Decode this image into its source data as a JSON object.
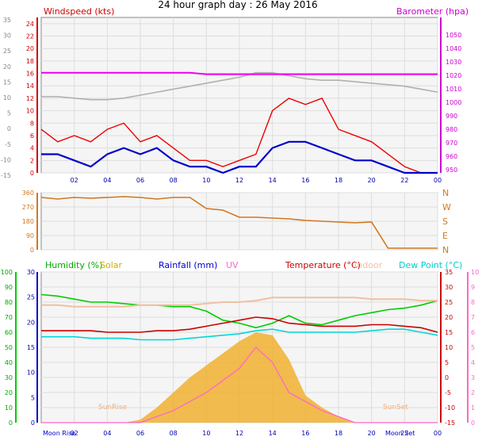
{
  "title": "24 hour graph day : 26 May 2016",
  "chart_data": [
    {
      "type": "line",
      "legend": {
        "windspeed": "Windspeed (kts)",
        "barometer": "Barometer (hpa)"
      },
      "x_ticks": [
        "02",
        "04",
        "06",
        "08",
        "10",
        "12",
        "14",
        "16",
        "18",
        "20",
        "22",
        "00"
      ],
      "left_outer_ticks": [
        "35",
        "30",
        "25",
        "20",
        "15",
        "10",
        "5",
        "0",
        "-5",
        "-10",
        "-15"
      ],
      "left_inner_ticks": [
        "24",
        "22",
        "20",
        "18",
        "16",
        "14",
        "12",
        "10",
        "8",
        "6",
        "4",
        "2",
        "0"
      ],
      "right_ticks": [
        "1050",
        "1040",
        "1030",
        "1020",
        "1010",
        "1000",
        "990",
        "980",
        "970",
        "960",
        "950"
      ],
      "ylim_wind": [
        0,
        25
      ],
      "ylim_baro": [
        948,
        1052
      ],
      "colors": {
        "gust": "#ee0000",
        "avg": "#0000cc",
        "baro": "#ee00ee",
        "gray": "#b0b0b0",
        "wind_text": "#cc0000",
        "baro_text": "#cc00cc"
      },
      "x": [
        0,
        1,
        2,
        3,
        4,
        5,
        6,
        7,
        8,
        9,
        10,
        11,
        12,
        13,
        14,
        15,
        16,
        17,
        18,
        19,
        20,
        21,
        22,
        23,
        24
      ],
      "series": [
        {
          "key": "gust",
          "values": [
            7,
            5,
            6,
            5,
            7,
            8,
            5,
            6,
            4,
            2,
            2,
            1,
            2,
            3,
            10,
            12,
            11,
            12,
            7,
            6,
            5,
            3,
            1,
            0,
            0
          ]
        },
        {
          "key": "avg",
          "values": [
            3,
            3,
            2,
            1,
            3,
            4,
            3,
            4,
            2,
            1,
            1,
            0,
            1,
            1,
            4,
            5,
            5,
            4,
            3,
            2,
            2,
            1,
            0,
            0,
            0
          ]
        },
        {
          "key": "baro",
          "values": [
            1015,
            1015,
            1015,
            1015,
            1015,
            1015,
            1015,
            1015,
            1015,
            1015,
            1014,
            1014,
            1014,
            1014,
            1014,
            1014,
            1014,
            1014,
            1014,
            1014,
            1014,
            1014,
            1014,
            1014,
            1014
          ]
        },
        {
          "key": "gray",
          "values": [
            999,
            999,
            998,
            997,
            997,
            998,
            1000,
            1002,
            1004,
            1006,
            1008,
            1010,
            1012,
            1015,
            1015,
            1013,
            1011,
            1010,
            1010,
            1009,
            1008,
            1007,
            1006,
            1004,
            1002
          ]
        }
      ]
    },
    {
      "type": "line",
      "left_ticks": [
        "360",
        "270",
        "180",
        "90",
        "0"
      ],
      "right_ticks": [
        "N",
        "W",
        "S",
        "E",
        "N"
      ],
      "ylim": [
        0,
        360
      ],
      "color": "#d07820",
      "x": [
        0,
        1,
        2,
        3,
        4,
        5,
        6,
        7,
        8,
        9,
        10,
        11,
        12,
        13,
        14,
        15,
        16,
        17,
        18,
        19,
        20,
        21,
        22,
        23,
        24
      ],
      "values": [
        330,
        320,
        330,
        325,
        330,
        335,
        330,
        320,
        330,
        330,
        260,
        250,
        205,
        205,
        200,
        195,
        185,
        180,
        175,
        170,
        175,
        10,
        10,
        10,
        10
      ]
    },
    {
      "type": "area",
      "legend": {
        "humidity": "Humidity  (%)",
        "solar": "Solar",
        "rainfall": "Rainfall (mm)",
        "uv": "UV",
        "temperature": "Temperature (°C)",
        "indoor": "Indoor",
        "dewpoint": "Dew Point (°C)"
      },
      "annotations": {
        "moon_rise": "Moon Rise",
        "sun_rise": "SunRise",
        "sun_set": "SunSet",
        "moon_set": "Moon Set"
      },
      "far_left_ticks": [
        "100",
        "90",
        "80",
        "70",
        "60",
        "50",
        "40",
        "30",
        "20",
        "10",
        "0"
      ],
      "left_ticks": [
        "30",
        "25",
        "20",
        "15",
        "10",
        "5",
        "0"
      ],
      "right_temp_ticks": [
        "35",
        "30",
        "25",
        "20",
        "15",
        "10",
        "5",
        "0",
        "-5",
        "-10",
        "-15"
      ],
      "right_uv_ticks": [
        "10",
        "9",
        "8",
        "7",
        "6",
        "5",
        "4",
        "3",
        "2",
        "1",
        "0"
      ],
      "x_ticks": [
        "02",
        "04",
        "06",
        "08",
        "10",
        "12",
        "14",
        "16",
        "18",
        "20",
        "22",
        "00"
      ],
      "ylim_temp": [
        -15,
        35
      ],
      "colors": {
        "humidity": "#00cc00",
        "solar": "#f0b030",
        "rainfall": "#0000cc",
        "uv": "#ff66cc",
        "temperature": "#cc0000",
        "indoor": "#f0c0a0",
        "dewpoint": "#00d8d8"
      },
      "x": [
        0,
        1,
        2,
        3,
        4,
        5,
        6,
        7,
        8,
        9,
        10,
        11,
        12,
        13,
        14,
        15,
        16,
        17,
        18,
        19,
        20,
        21,
        22,
        23,
        24
      ],
      "series": [
        {
          "key": "humidity",
          "values": [
            27.5,
            27,
            26,
            25,
            25,
            24.5,
            24,
            24,
            23.5,
            23.5,
            22,
            19,
            18,
            16.5,
            18,
            20.5,
            18,
            17.5,
            19,
            20.5,
            21.5,
            22.5,
            23,
            24,
            25.5
          ]
        },
        {
          "key": "indoor",
          "values": [
            24,
            24,
            23.5,
            23.5,
            23.5,
            23.5,
            24,
            24,
            24,
            24,
            24.5,
            25,
            25,
            25.5,
            26.5,
            26.5,
            26.5,
            26.5,
            26.5,
            26.5,
            26,
            26,
            26,
            25.5,
            25.5
          ]
        },
        {
          "key": "temperature",
          "values": [
            15.5,
            15.5,
            15.5,
            15.5,
            15,
            15,
            15,
            15.5,
            15.5,
            16,
            17,
            18,
            19,
            20,
            19.5,
            18,
            17.5,
            17,
            17,
            17,
            17.5,
            17.5,
            17,
            16.5,
            15
          ]
        },
        {
          "key": "dewpoint",
          "values": [
            13.5,
            13.5,
            13.5,
            13,
            13,
            13,
            12.5,
            12.5,
            12.5,
            13,
            13.5,
            14,
            14.5,
            15.5,
            16,
            15,
            15,
            15,
            15,
            15,
            15.5,
            16,
            16,
            15,
            14
          ]
        },
        {
          "key": "uv",
          "values": [
            -15,
            -15,
            -15,
            -15,
            -15,
            -15,
            -15,
            -13,
            -11,
            -8,
            -5,
            -1,
            3,
            10,
            5,
            -5,
            -8,
            -11,
            -13,
            -15,
            -15,
            -15,
            -15,
            -15,
            -15
          ]
        },
        {
          "key": "solar",
          "values": [
            -15,
            -15,
            -15,
            -15,
            -15,
            -15,
            -14,
            -10,
            -5,
            0,
            4,
            8,
            12,
            15,
            14,
            6,
            -6,
            -10,
            -13,
            -15,
            -15,
            -15,
            -15,
            -15,
            -15
          ]
        }
      ]
    }
  ]
}
